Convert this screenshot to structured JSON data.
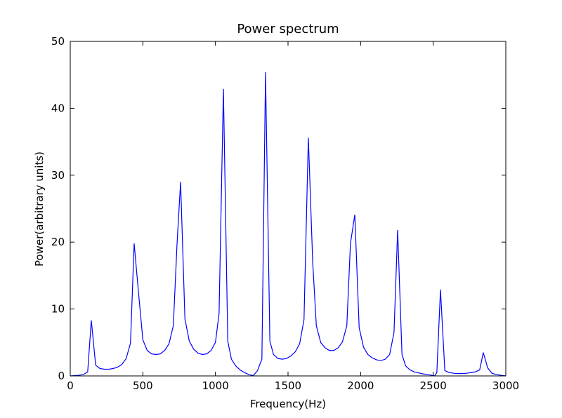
{
  "chart_data": {
    "type": "line",
    "title": "Power spectrum",
    "x_label": "Frequency(Hz)",
    "y_label": "Power(arbitrary units)",
    "xlim": [
      0,
      3000
    ],
    "ylim": [
      0,
      50
    ],
    "xticks": [
      0,
      500,
      1000,
      1500,
      2000,
      2500,
      3000
    ],
    "yticks": [
      0,
      10,
      20,
      30,
      40,
      50
    ],
    "grid": false,
    "x": [
      0,
      60,
      90,
      120,
      145,
      175,
      205,
      235,
      265,
      295,
      325,
      355,
      385,
      415,
      440,
      470,
      500,
      530,
      560,
      590,
      620,
      650,
      680,
      710,
      735,
      760,
      790,
      820,
      850,
      880,
      910,
      940,
      970,
      1000,
      1025,
      1055,
      1085,
      1110,
      1140,
      1170,
      1200,
      1230,
      1260,
      1290,
      1320,
      1345,
      1375,
      1400,
      1430,
      1460,
      1490,
      1520,
      1550,
      1580,
      1610,
      1640,
      1670,
      1695,
      1725,
      1755,
      1785,
      1815,
      1845,
      1875,
      1905,
      1930,
      1960,
      1990,
      2020,
      2050,
      2080,
      2110,
      2140,
      2170,
      2200,
      2230,
      2255,
      2285,
      2310,
      2340,
      2370,
      2400,
      2430,
      2460,
      2490,
      2510,
      2525,
      2550,
      2580,
      2610,
      2640,
      2670,
      2700,
      2730,
      2760,
      2790,
      2820,
      2845,
      2875,
      2905,
      2935,
      2965,
      3000
    ],
    "series": [
      {
        "color": "#0000ff",
        "values": [
          0,
          0.1,
          0.2,
          0.6,
          8.3,
          1.6,
          1.1,
          1.0,
          1.0,
          1.1,
          1.3,
          1.7,
          2.6,
          4.9,
          19.8,
          12.5,
          5.4,
          3.8,
          3.3,
          3.2,
          3.3,
          3.8,
          4.8,
          7.5,
          19.5,
          29.0,
          8.5,
          5.2,
          4.0,
          3.4,
          3.2,
          3.3,
          3.8,
          5.0,
          9.3,
          42.9,
          5.2,
          2.5,
          1.5,
          0.9,
          0.5,
          0.2,
          0.05,
          0.8,
          2.5,
          45.4,
          5.2,
          3.2,
          2.6,
          2.5,
          2.6,
          3.0,
          3.6,
          4.8,
          8.4,
          35.6,
          17,
          7.5,
          5.0,
          4.2,
          3.8,
          3.8,
          4.2,
          5.1,
          7.5,
          19.8,
          24.1,
          7.2,
          4.3,
          3.2,
          2.7,
          2.4,
          2.3,
          2.5,
          3.2,
          6.5,
          21.8,
          3.2,
          1.5,
          0.9,
          0.6,
          0.45,
          0.3,
          0.2,
          0.1,
          0,
          0.5,
          12.9,
          0.8,
          0.5,
          0.4,
          0.35,
          0.35,
          0.4,
          0.5,
          0.6,
          0.9,
          3.5,
          1.2,
          0.4,
          0.2,
          0.1,
          0
        ]
      }
    ]
  }
}
